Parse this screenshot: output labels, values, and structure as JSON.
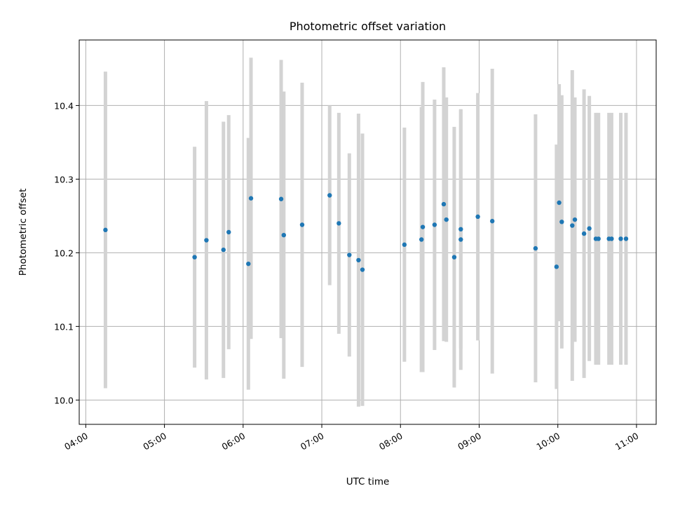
{
  "chart_data": {
    "type": "scatter",
    "title": "Photometric offset variation",
    "xlabel": "UTC time",
    "ylabel": "Photometric offset",
    "x_axis_kind": "time",
    "xlim": [
      "03:55",
      "11:15"
    ],
    "ylim": [
      9.967,
      10.489
    ],
    "grid": true,
    "x_ticks": [
      "04:00",
      "05:00",
      "06:00",
      "07:00",
      "08:00",
      "09:00",
      "10:00",
      "11:00"
    ],
    "y_ticks": [
      "10.0",
      "10.1",
      "10.2",
      "10.3",
      "10.4"
    ],
    "colors": {
      "points": "#1f77b4",
      "errorbars": "#d3d3d3",
      "grid": "#b0b0b0"
    },
    "points": [
      {
        "x": "04:15",
        "y": 10.231,
        "err": 0.215
      },
      {
        "x": "05:23",
        "y": 10.194,
        "err": 0.15
      },
      {
        "x": "05:32",
        "y": 10.217,
        "err": 0.189
      },
      {
        "x": "05:45",
        "y": 10.204,
        "err": 0.174
      },
      {
        "x": "05:49",
        "y": 10.228,
        "err": 0.159
      },
      {
        "x": "06:04",
        "y": 10.185,
        "err": 0.171
      },
      {
        "x": "06:06",
        "y": 10.274,
        "err": 0.191
      },
      {
        "x": "06:29",
        "y": 10.273,
        "err": 0.189
      },
      {
        "x": "06:31",
        "y": 10.224,
        "err": 0.195
      },
      {
        "x": "06:45",
        "y": 10.238,
        "err": 0.193
      },
      {
        "x": "07:06",
        "y": 10.278,
        "err": 0.122
      },
      {
        "x": "07:13",
        "y": 10.24,
        "err": 0.15
      },
      {
        "x": "07:21",
        "y": 10.197,
        "err": 0.138
      },
      {
        "x": "07:28",
        "y": 10.19,
        "err": 0.199
      },
      {
        "x": "07:31",
        "y": 10.177,
        "err": 0.185
      },
      {
        "x": "08:03",
        "y": 10.211,
        "err": 0.159
      },
      {
        "x": "08:16",
        "y": 10.218,
        "err": 0.18
      },
      {
        "x": "08:17",
        "y": 10.235,
        "err": 0.197
      },
      {
        "x": "08:26",
        "y": 10.238,
        "err": 0.17
      },
      {
        "x": "08:33",
        "y": 10.266,
        "err": 0.186
      },
      {
        "x": "08:35",
        "y": 10.245,
        "err": 0.166
      },
      {
        "x": "08:41",
        "y": 10.194,
        "err": 0.177
      },
      {
        "x": "08:46",
        "y": 10.218,
        "err": 0.177
      },
      {
        "x": "08:46",
        "y": 10.232,
        "err": 0.162
      },
      {
        "x": "08:59",
        "y": 10.249,
        "err": 0.168
      },
      {
        "x": "09:10",
        "y": 10.243,
        "err": 0.207
      },
      {
        "x": "09:43",
        "y": 10.206,
        "err": 0.182
      },
      {
        "x": "09:59",
        "y": 10.181,
        "err": 0.166
      },
      {
        "x": "10:01",
        "y": 10.268,
        "err": 0.161
      },
      {
        "x": "10:03",
        "y": 10.242,
        "err": 0.172
      },
      {
        "x": "10:11",
        "y": 10.237,
        "err": 0.211
      },
      {
        "x": "10:13",
        "y": 10.245,
        "err": 0.166
      },
      {
        "x": "10:20",
        "y": 10.226,
        "err": 0.196
      },
      {
        "x": "10:24",
        "y": 10.233,
        "err": 0.18
      },
      {
        "x": "10:29",
        "y": 10.219,
        "err": 0.171
      },
      {
        "x": "10:31",
        "y": 10.219,
        "err": 0.171
      },
      {
        "x": "10:39",
        "y": 10.219,
        "err": 0.171
      },
      {
        "x": "10:41",
        "y": 10.219,
        "err": 0.171
      },
      {
        "x": "10:48",
        "y": 10.219,
        "err": 0.171
      },
      {
        "x": "10:52",
        "y": 10.219,
        "err": 0.171
      }
    ]
  }
}
